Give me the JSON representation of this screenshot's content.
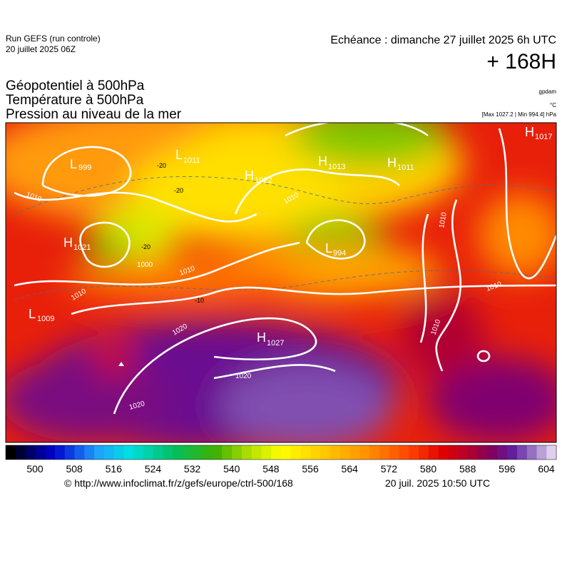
{
  "header": {
    "run": "Run GEFS (run controle)",
    "date": "20 juillet 2025 06Z",
    "echeance": "Echéance : dimanche 27 juillet 2025 6h UTC",
    "lead": "+ 168H"
  },
  "titles": [
    "Géopotentiel à 500hPa",
    "Température à 500hPa",
    "Pression au niveau de la mer"
  ],
  "units": [
    "gpdam",
    "°C",
    "[Max 1027.2 | Min 994.4] hPa"
  ],
  "map": {
    "centers": [
      {
        "letter": "L",
        "value": "999"
      },
      {
        "letter": "L",
        "value": "1011"
      },
      {
        "letter": "H",
        "value": "1022"
      },
      {
        "letter": "H",
        "value": "1013"
      },
      {
        "letter": "H",
        "value": "1011"
      },
      {
        "letter": "H",
        "value": "1017"
      },
      {
        "letter": "H",
        "value": "1021"
      },
      {
        "letter": "L",
        "value": "994"
      },
      {
        "letter": "L",
        "value": "1009"
      },
      {
        "letter": "H",
        "value": "1027"
      }
    ],
    "isobar_labels": [
      "1010",
      "1000",
      "1010",
      "1010",
      "1020",
      "1020",
      "1020",
      "1010",
      "1010",
      "1010",
      "1010"
    ],
    "temp_labels": [
      "-20",
      "-20",
      "-20",
      "-10"
    ]
  },
  "colorbar": {
    "ticks": [
      500,
      508,
      516,
      524,
      532,
      540,
      548,
      556,
      564,
      572,
      580,
      588,
      596,
      604
    ]
  },
  "footer": {
    "source": "© http://www.infoclimat.fr/z/gefs/europe/ctrl-500/168",
    "issued": "20 juil. 2025 10:50 UTC"
  }
}
